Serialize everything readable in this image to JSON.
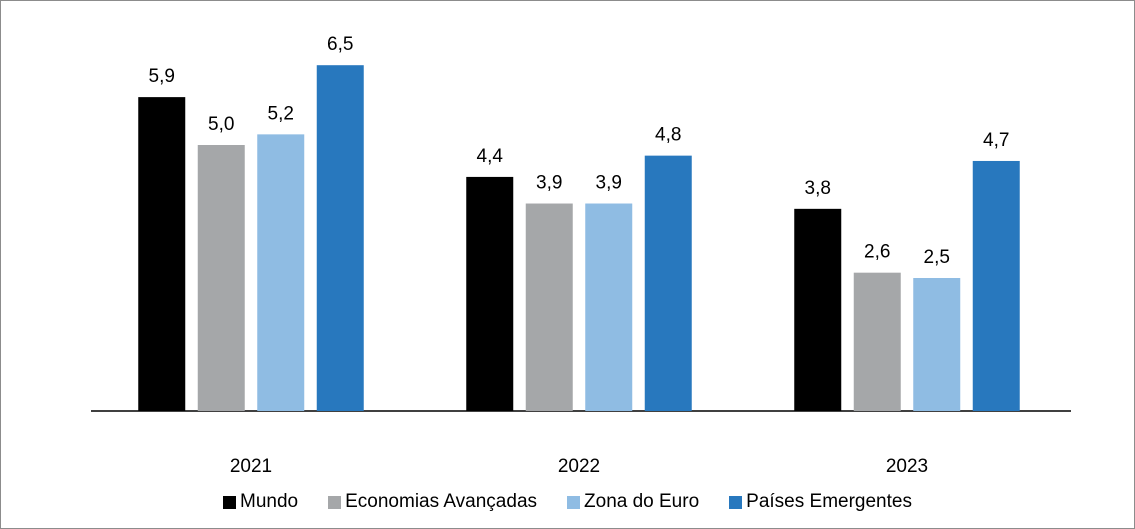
{
  "chart_data": {
    "type": "bar",
    "categories": [
      "2021",
      "2022",
      "2023"
    ],
    "series": [
      {
        "name": "Mundo",
        "color": "#000000",
        "values": [
          5.9,
          4.4,
          3.8
        ],
        "value_labels": [
          "5,9",
          "4,4",
          "3,8"
        ]
      },
      {
        "name": "Economias Avançadas",
        "color": "#a5a7a9",
        "values": [
          5.0,
          3.9,
          2.6
        ],
        "value_labels": [
          "5,0",
          "3,9",
          "2,6"
        ]
      },
      {
        "name": "Zona do Euro",
        "color": "#8fbce3",
        "values": [
          5.2,
          3.9,
          2.5
        ],
        "value_labels": [
          "5,2",
          "3,9",
          "2,5"
        ]
      },
      {
        "name": "Países Emergentes",
        "color": "#2878be",
        "values": [
          6.5,
          4.8,
          4.7
        ],
        "value_labels": [
          "6,5",
          "4,8",
          "4,7"
        ]
      }
    ],
    "legend": "bottom"
  }
}
